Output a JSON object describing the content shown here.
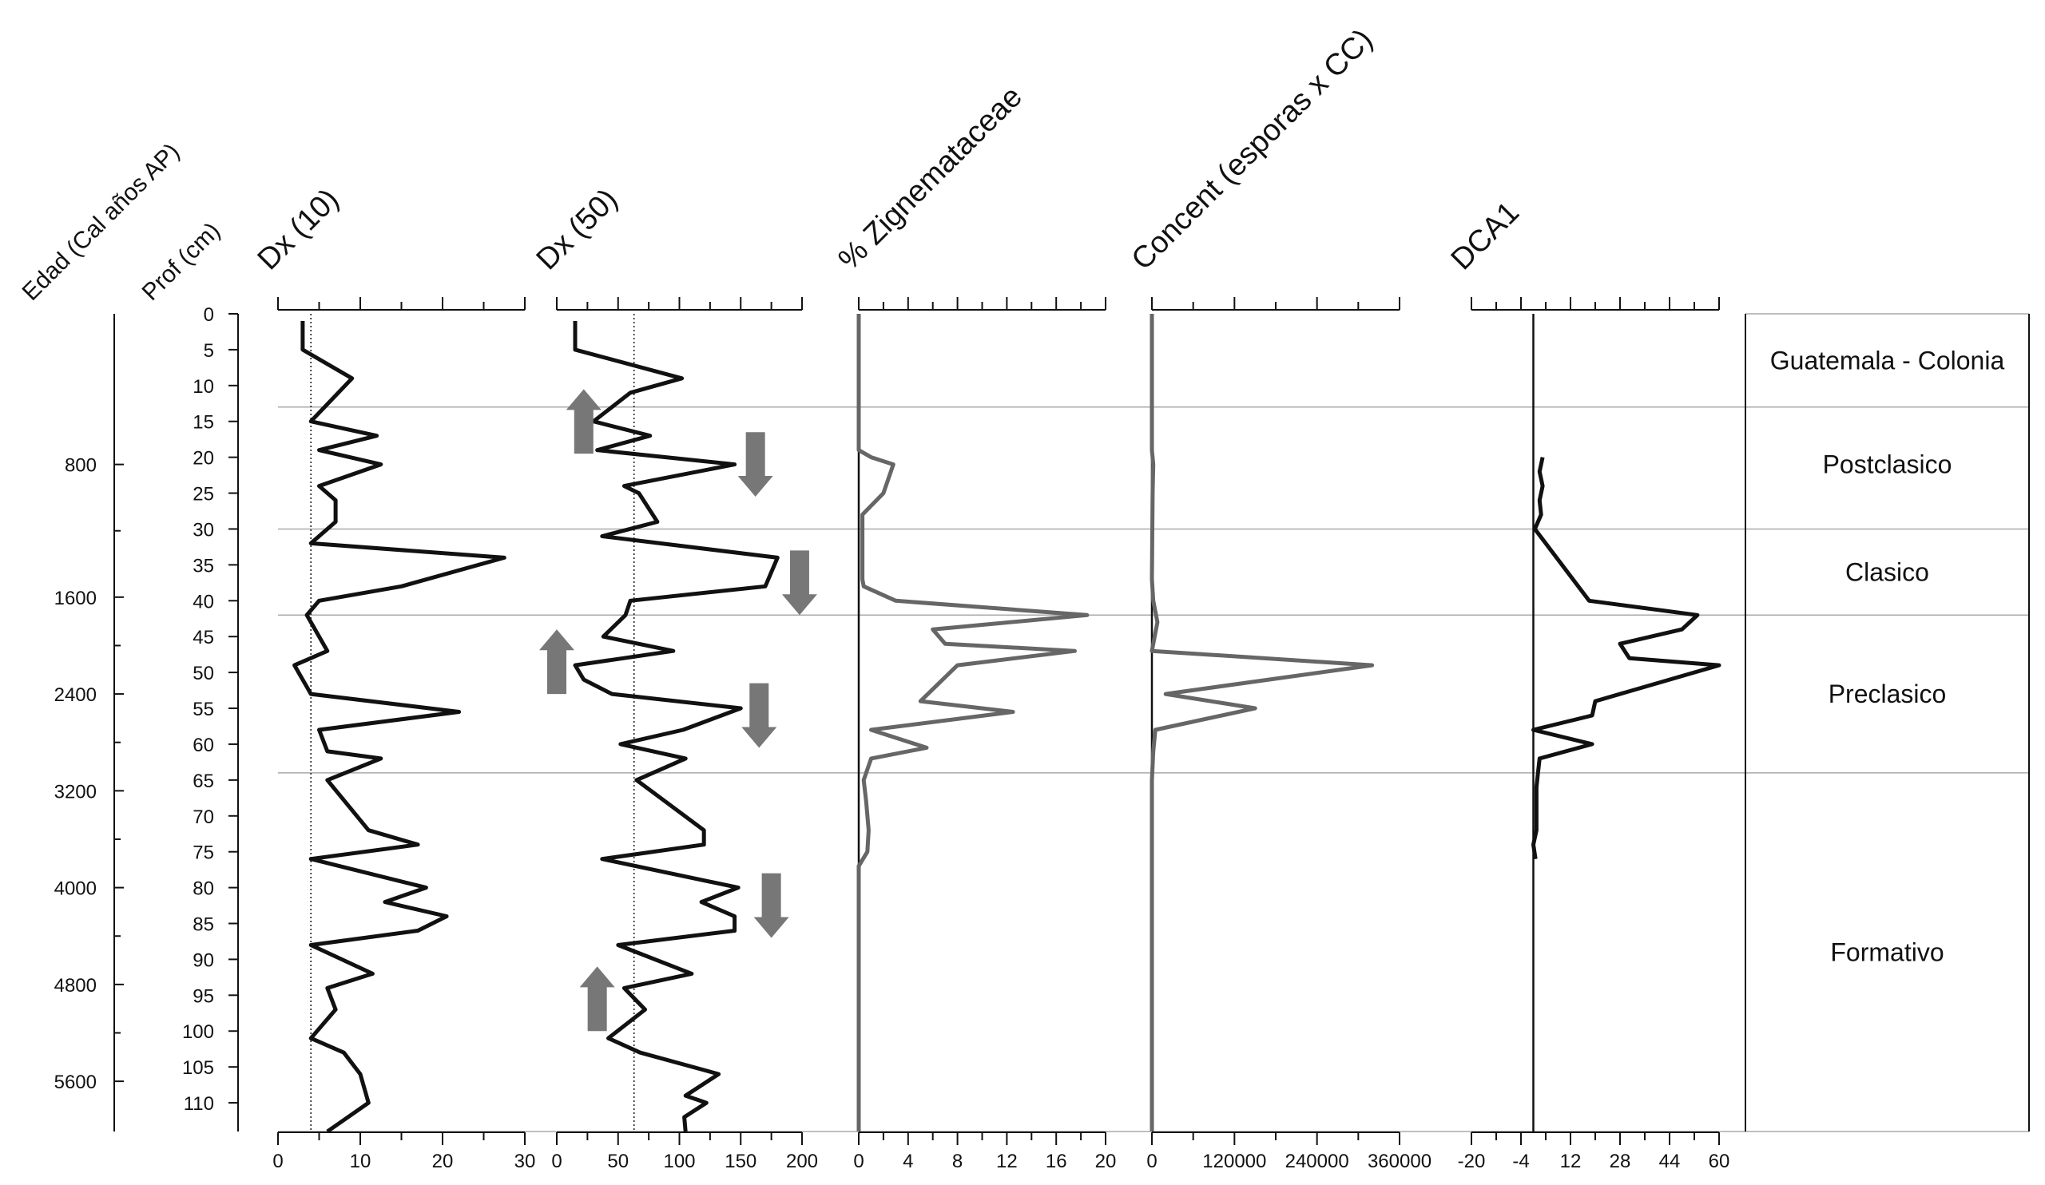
{
  "chart_data": {
    "type": "line",
    "headers": {
      "age": "Edad (Cal años AP)",
      "depth": "Prof (cm)"
    },
    "age_axis": {
      "ticks": [
        "800",
        "1600",
        "2400",
        "3200",
        "4000",
        "4800",
        "5600"
      ],
      "tick_depths_cm": [
        21,
        39.5,
        53,
        66.5,
        80,
        93.5,
        107
      ]
    },
    "depth_axis": {
      "ticks": [
        "0",
        "5",
        "10",
        "15",
        "20",
        "25",
        "30",
        "35",
        "40",
        "45",
        "50",
        "55",
        "60",
        "65",
        "70",
        "75",
        "80",
        "85",
        "90",
        "95",
        "100",
        "105",
        "110"
      ],
      "range": [
        0,
        114
      ]
    },
    "zone_boundaries_cm": [
      13,
      30,
      42,
      64
    ],
    "zones": [
      {
        "label": "Guatemala - Colonia",
        "depth": 6.5
      },
      {
        "label": "Postclasico",
        "depth": 21
      },
      {
        "label": "Clasico",
        "depth": 36
      },
      {
        "label": "Preclasico",
        "depth": 53
      },
      {
        "label": "Formativo",
        "depth": 89
      }
    ],
    "panels": [
      {
        "title": "Dx (10)",
        "xlim": [
          0,
          30
        ],
        "ticks": [
          "0",
          "10",
          "20",
          "30"
        ],
        "reference_line": 4,
        "series": [
          {
            "x": 3,
            "depth": 1
          },
          {
            "x": 3,
            "depth": 5
          },
          {
            "x": 9,
            "depth": 9
          },
          {
            "x": 4,
            "depth": 15
          },
          {
            "x": 12,
            "depth": 17
          },
          {
            "x": 5,
            "depth": 19
          },
          {
            "x": 12.5,
            "depth": 21
          },
          {
            "x": 5,
            "depth": 24
          },
          {
            "x": 7,
            "depth": 26
          },
          {
            "x": 7,
            "depth": 29
          },
          {
            "x": 4,
            "depth": 32
          },
          {
            "x": 27.5,
            "depth": 34
          },
          {
            "x": 15,
            "depth": 38
          },
          {
            "x": 5,
            "depth": 40
          },
          {
            "x": 3.5,
            "depth": 42
          },
          {
            "x": 6,
            "depth": 47
          },
          {
            "x": 2,
            "depth": 49
          },
          {
            "x": 3,
            "depth": 51
          },
          {
            "x": 4,
            "depth": 53
          },
          {
            "x": 22,
            "depth": 55.5
          },
          {
            "x": 5,
            "depth": 58
          },
          {
            "x": 6,
            "depth": 61
          },
          {
            "x": 12.5,
            "depth": 62
          },
          {
            "x": 6,
            "depth": 65
          },
          {
            "x": 11,
            "depth": 72
          },
          {
            "x": 17,
            "depth": 74
          },
          {
            "x": 4,
            "depth": 76
          },
          {
            "x": 18,
            "depth": 80
          },
          {
            "x": 13,
            "depth": 82
          },
          {
            "x": 20.5,
            "depth": 84
          },
          {
            "x": 17,
            "depth": 86
          },
          {
            "x": 4,
            "depth": 88
          },
          {
            "x": 11.5,
            "depth": 92
          },
          {
            "x": 6,
            "depth": 94
          },
          {
            "x": 7,
            "depth": 97
          },
          {
            "x": 4,
            "depth": 101
          },
          {
            "x": 8,
            "depth": 103
          },
          {
            "x": 10,
            "depth": 106
          },
          {
            "x": 11,
            "depth": 110
          },
          {
            "x": 6,
            "depth": 114
          }
        ]
      },
      {
        "title": "Dx (50)",
        "xlim": [
          0,
          200
        ],
        "ticks": [
          "0",
          "50",
          "100",
          "150",
          "200"
        ],
        "reference_line": 63,
        "series": [
          {
            "x": 15,
            "depth": 1
          },
          {
            "x": 15,
            "depth": 5
          },
          {
            "x": 102,
            "depth": 9
          },
          {
            "x": 60,
            "depth": 11
          },
          {
            "x": 30,
            "depth": 15
          },
          {
            "x": 76,
            "depth": 17
          },
          {
            "x": 33,
            "depth": 19
          },
          {
            "x": 145,
            "depth": 21
          },
          {
            "x": 55,
            "depth": 24
          },
          {
            "x": 67,
            "depth": 25
          },
          {
            "x": 82,
            "depth": 29
          },
          {
            "x": 37,
            "depth": 31
          },
          {
            "x": 180,
            "depth": 34
          },
          {
            "x": 170,
            "depth": 38
          },
          {
            "x": 60,
            "depth": 40
          },
          {
            "x": 56,
            "depth": 42
          },
          {
            "x": 38,
            "depth": 45
          },
          {
            "x": 95,
            "depth": 47
          },
          {
            "x": 15,
            "depth": 49
          },
          {
            "x": 22,
            "depth": 51
          },
          {
            "x": 45,
            "depth": 53
          },
          {
            "x": 150,
            "depth": 55
          },
          {
            "x": 103,
            "depth": 58
          },
          {
            "x": 52,
            "depth": 60
          },
          {
            "x": 105,
            "depth": 62
          },
          {
            "x": 65,
            "depth": 65
          },
          {
            "x": 120,
            "depth": 72
          },
          {
            "x": 120,
            "depth": 74
          },
          {
            "x": 37,
            "depth": 76
          },
          {
            "x": 148,
            "depth": 80
          },
          {
            "x": 118,
            "depth": 82
          },
          {
            "x": 145,
            "depth": 84
          },
          {
            "x": 145,
            "depth": 86
          },
          {
            "x": 50,
            "depth": 88
          },
          {
            "x": 110,
            "depth": 92
          },
          {
            "x": 55,
            "depth": 94
          },
          {
            "x": 72,
            "depth": 97
          },
          {
            "x": 42,
            "depth": 101
          },
          {
            "x": 68,
            "depth": 103
          },
          {
            "x": 132,
            "depth": 106
          },
          {
            "x": 105,
            "depth": 109
          },
          {
            "x": 122,
            "depth": 110
          },
          {
            "x": 104,
            "depth": 112
          },
          {
            "x": 105,
            "depth": 114
          }
        ]
      },
      {
        "title": "% Zignemataceae",
        "xlim": [
          0,
          20
        ],
        "ticks": [
          "0",
          "4",
          "8",
          "12",
          "16",
          "20"
        ],
        "series": [
          {
            "x": 0,
            "depth": 0
          },
          {
            "x": 0,
            "depth": 19
          },
          {
            "x": 1,
            "depth": 20
          },
          {
            "x": 2.8,
            "depth": 21
          },
          {
            "x": 2,
            "depth": 25
          },
          {
            "x": 0.3,
            "depth": 28
          },
          {
            "x": 0.3,
            "depth": 37
          },
          {
            "x": 0.4,
            "depth": 38
          },
          {
            "x": 3,
            "depth": 40
          },
          {
            "x": 18.5,
            "depth": 42
          },
          {
            "x": 6,
            "depth": 44
          },
          {
            "x": 7,
            "depth": 46
          },
          {
            "x": 17.5,
            "depth": 47
          },
          {
            "x": 8,
            "depth": 49
          },
          {
            "x": 5,
            "depth": 54
          },
          {
            "x": 12.5,
            "depth": 55.5
          },
          {
            "x": 1,
            "depth": 58
          },
          {
            "x": 5.5,
            "depth": 60.5
          },
          {
            "x": 1,
            "depth": 62
          },
          {
            "x": 0.4,
            "depth": 65
          },
          {
            "x": 0.6,
            "depth": 68
          },
          {
            "x": 0.8,
            "depth": 72
          },
          {
            "x": 0.7,
            "depth": 75
          },
          {
            "x": 0,
            "depth": 77
          },
          {
            "x": 0,
            "depth": 114
          }
        ]
      },
      {
        "title": "Concent (esporas x CC)",
        "xlim": [
          0,
          360000
        ],
        "ticks": [
          "0",
          "120000",
          "240000",
          "360000"
        ],
        "series": [
          {
            "x": 0,
            "depth": 0
          },
          {
            "x": 0,
            "depth": 19
          },
          {
            "x": 2000,
            "depth": 21
          },
          {
            "x": 1000,
            "depth": 25
          },
          {
            "x": 0,
            "depth": 37
          },
          {
            "x": 2000,
            "depth": 40
          },
          {
            "x": 8000,
            "depth": 43
          },
          {
            "x": 0,
            "depth": 47
          },
          {
            "x": 320000,
            "depth": 49
          },
          {
            "x": 20000,
            "depth": 53
          },
          {
            "x": 150000,
            "depth": 55
          },
          {
            "x": 5000,
            "depth": 58
          },
          {
            "x": 2000,
            "depth": 61
          },
          {
            "x": 0,
            "depth": 65
          },
          {
            "x": 0,
            "depth": 114
          }
        ]
      },
      {
        "title": "DCA1",
        "xlim": [
          -20,
          60
        ],
        "ticks": [
          "-20",
          "-4",
          "12",
          "28",
          "44",
          "60"
        ],
        "reference_line": 0,
        "series": [
          {
            "x": 3,
            "depth": 20
          },
          {
            "x": 2,
            "depth": 22
          },
          {
            "x": 3,
            "depth": 24
          },
          {
            "x": 2,
            "depth": 26
          },
          {
            "x": 2.5,
            "depth": 28
          },
          {
            "x": 0.5,
            "depth": 30
          },
          {
            "x": 18,
            "depth": 40
          },
          {
            "x": 53,
            "depth": 42
          },
          {
            "x": 48,
            "depth": 44
          },
          {
            "x": 28,
            "depth": 46
          },
          {
            "x": 31,
            "depth": 48
          },
          {
            "x": 60,
            "depth": 49
          },
          {
            "x": 20,
            "depth": 54
          },
          {
            "x": 19,
            "depth": 56
          },
          {
            "x": 0,
            "depth": 58
          },
          {
            "x": 19,
            "depth": 60
          },
          {
            "x": 2,
            "depth": 62
          },
          {
            "x": 1.5,
            "depth": 64
          },
          {
            "x": 1,
            "depth": 66
          },
          {
            "x": 1,
            "depth": 72
          },
          {
            "x": 0,
            "depth": 74
          },
          {
            "x": 0.7,
            "depth": 76
          }
        ]
      }
    ],
    "arrows": [
      {
        "panel": 1,
        "direction": "up",
        "x": 22,
        "depth_from": 19.5,
        "depth_to": 10.5
      },
      {
        "panel": 1,
        "direction": "down",
        "x": 162,
        "depth_from": 16.5,
        "depth_to": 25.5
      },
      {
        "panel": 1,
        "direction": "down",
        "x": 198,
        "depth_from": 33,
        "depth_to": 42
      },
      {
        "panel": 1,
        "direction": "up",
        "x": 0,
        "depth_from": 53,
        "depth_to": 44
      },
      {
        "panel": 1,
        "direction": "down",
        "x": 165,
        "depth_from": 51.5,
        "depth_to": 60.5
      },
      {
        "panel": 1,
        "direction": "up",
        "x": 33,
        "depth_from": 100,
        "depth_to": 91
      },
      {
        "panel": 1,
        "direction": "down",
        "x": 175,
        "depth_from": 78,
        "depth_to": 87
      }
    ]
  }
}
